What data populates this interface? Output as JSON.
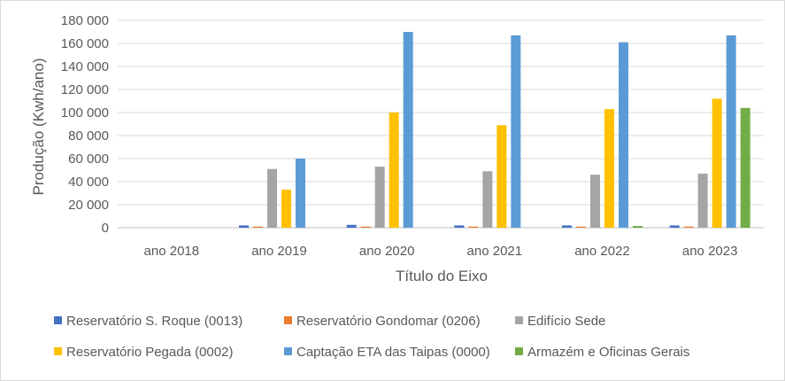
{
  "chart_data": {
    "type": "bar",
    "categories": [
      "ano  2018",
      "ano 2019",
      "ano 2020",
      "ano 2021",
      "ano 2022",
      "ano 2023"
    ],
    "series": [
      {
        "name": "Reservatório S. Roque (0013)",
        "color": "#4472c4",
        "values": [
          0,
          2000,
          2500,
          2000,
          2000,
          2000
        ]
      },
      {
        "name": "Reservatório Gondomar (0206)",
        "color": "#ed7d31",
        "values": [
          0,
          1000,
          1000,
          1000,
          1000,
          1000
        ]
      },
      {
        "name": "Edifício Sede",
        "color": "#a5a5a5",
        "values": [
          0,
          51000,
          53000,
          49000,
          46000,
          47000
        ]
      },
      {
        "name": "Reservatório Pegada (0002)",
        "color": "#ffc000",
        "values": [
          0,
          33000,
          100000,
          89000,
          103000,
          112000
        ]
      },
      {
        "name": "Captação ETA das Taipas (0000)",
        "color": "#5b9bd5",
        "values": [
          0,
          60000,
          170000,
          167000,
          161000,
          167000
        ]
      },
      {
        "name": "Armazém e Oficinas Gerais",
        "color": "#70ad47",
        "values": [
          0,
          0,
          0,
          0,
          1500,
          104000
        ]
      }
    ],
    "yticks": [
      "0",
      "20 000",
      "40 000",
      "60 000",
      "80 000",
      "100 000",
      "120 000",
      "140 000",
      "160 000",
      "180 000"
    ],
    "ylim": [
      0,
      180000
    ],
    "xlabel": "Título do Eixo",
    "ylabel": "Produção (Kwh/ano)",
    "grid": true,
    "legend_position": "bottom"
  }
}
